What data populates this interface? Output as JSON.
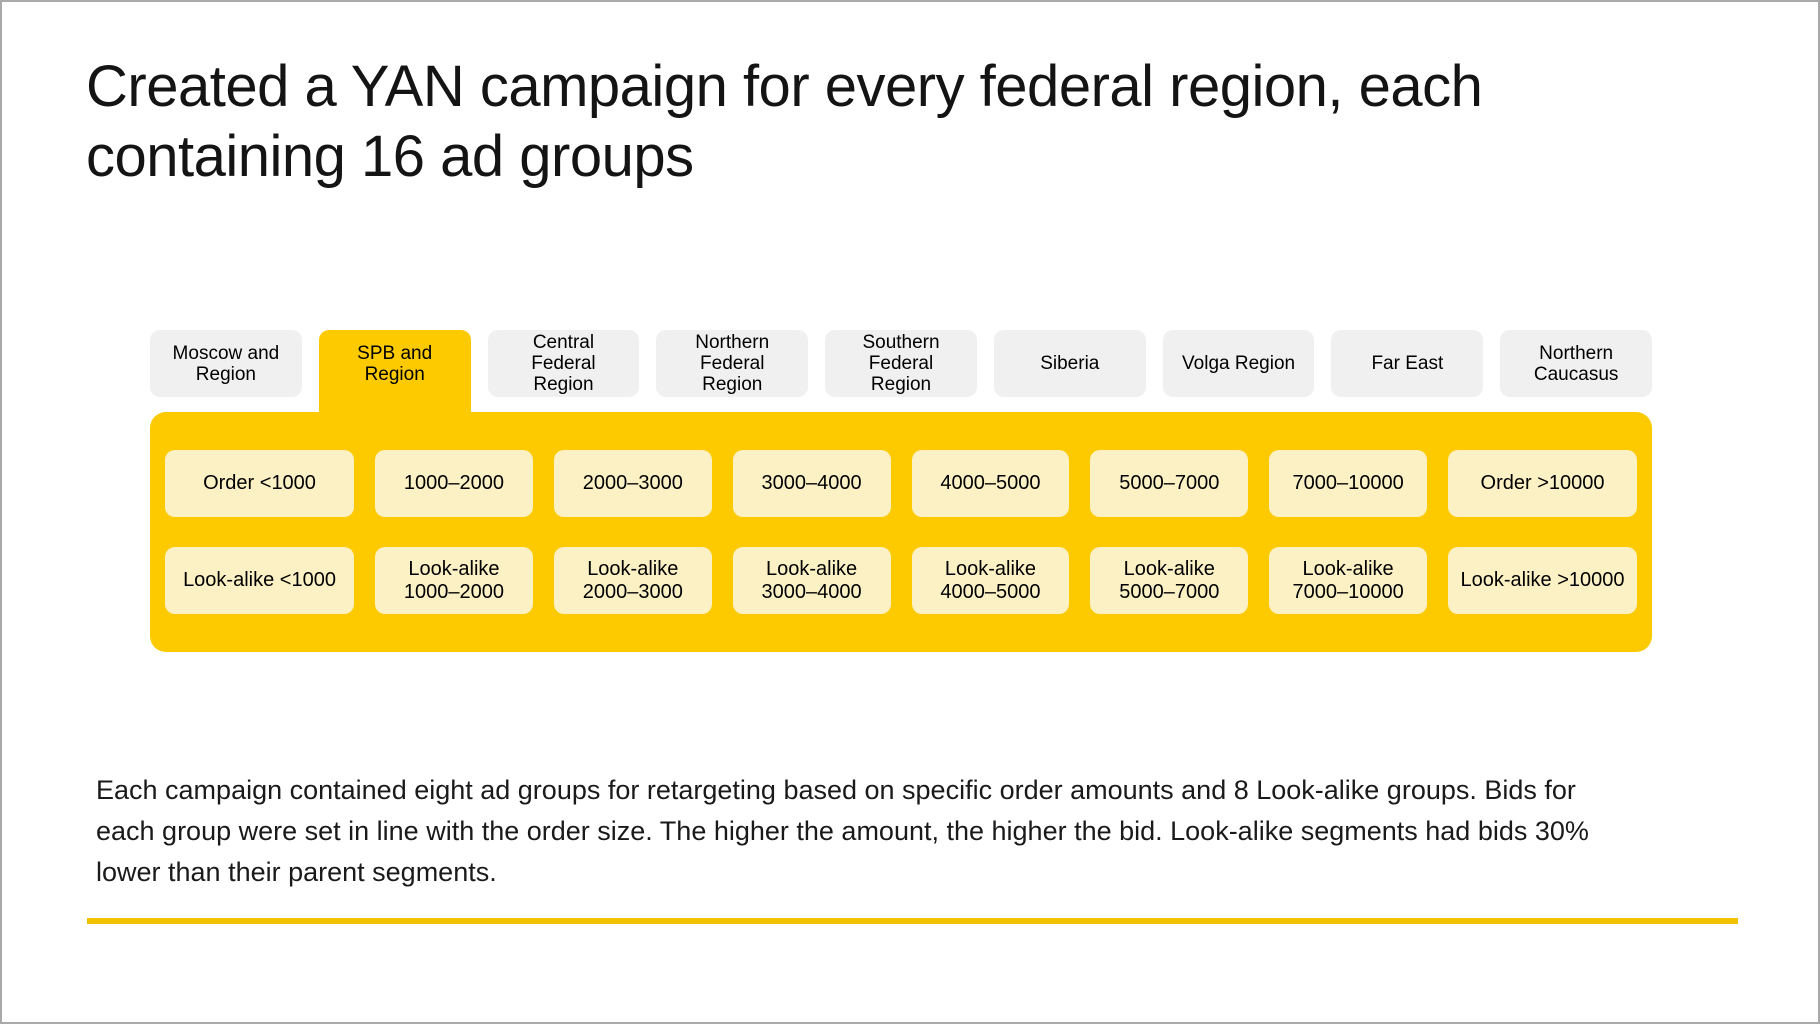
{
  "slide": {
    "title_lines": [
      "Created a YAN campaign for every federal region, each",
      "containing 16 ad groups"
    ],
    "region_tabs": [
      {
        "label": "Moscow and Region",
        "active": false
      },
      {
        "label": "SPB and Region",
        "active": true
      },
      {
        "label": "Central Federal Region",
        "active": false
      },
      {
        "label": "Northern Federal Region",
        "active": false
      },
      {
        "label": "Southern Federal Region",
        "active": false
      },
      {
        "label": "Siberia",
        "active": false
      },
      {
        "label": "Volga Region",
        "active": false
      },
      {
        "label": "Far East",
        "active": false
      },
      {
        "label": "Northern Caucasus",
        "active": false
      }
    ],
    "ad_groups": {
      "retargeting_row": [
        "Order <1000",
        "1000–2000",
        "2000–3000",
        "3000–4000",
        "4000–5000",
        "5000–7000",
        "7000–10000",
        "Order >10000"
      ],
      "lookalike_row": [
        "Look-alike <1000",
        "Look-alike 1000–2000",
        "Look-alike 2000–3000",
        "Look-alike 3000–4000",
        "Look-alike 4000–5000",
        "Look-alike 5000–7000",
        "Look-alike 7000–10000",
        "Look-alike >10000"
      ]
    },
    "description_lines": [
      "Each campaign contained eight ad groups for retargeting based on specific order amounts and 8 Look-alike groups. Bids for",
      "each group were set in line with the order size. The higher the amount, the higher the bid. Look-alike segments had bids 30%",
      "lower than their parent segments."
    ],
    "colors": {
      "accent_yellow": "#FDCA00",
      "chip_background": "#FBF1C4",
      "tab_background": "#F0F0F0",
      "divider_yellow": "#F2C200",
      "text": "#141414"
    }
  }
}
